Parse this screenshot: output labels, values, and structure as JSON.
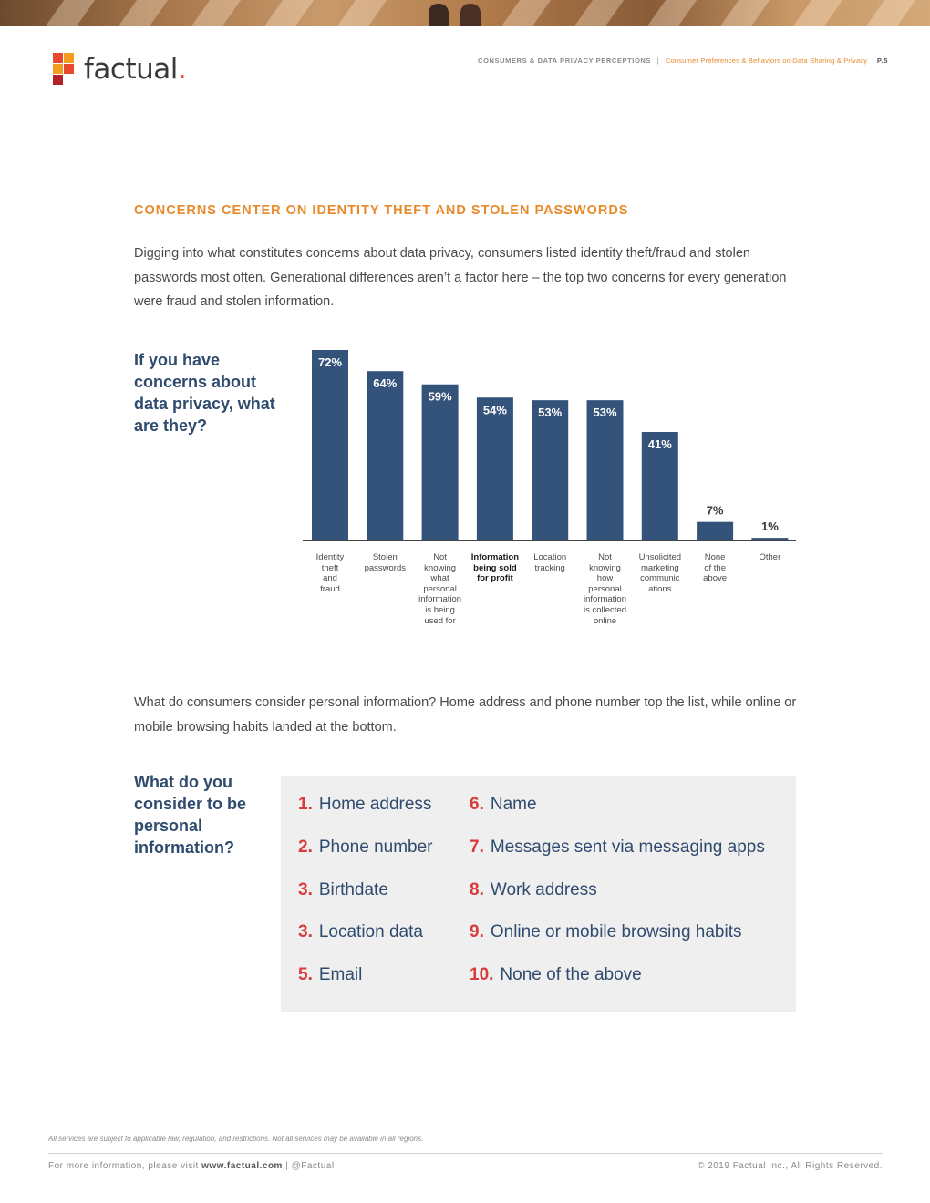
{
  "brand": {
    "name": "factual",
    "dot": ".",
    "colors": {
      "orange": "#f39c1f",
      "red": "#e8482e",
      "dark_red": "#b32026",
      "navy": "#2f4b6e",
      "bar": "#34537a",
      "accent_orange": "#e8892a"
    }
  },
  "header": {
    "doc_title": "CONSUMERS & DATA PRIVACY PERCEPTIONS",
    "separator": "|",
    "section": "Consumer Preferences & Behaviors on Data Sharing & Privacy",
    "page": "P.5"
  },
  "section_heading": "CONCERNS CENTER ON IDENTITY THEFT AND STOLEN PASSWORDS",
  "intro_text": "Digging into what constitutes concerns about data privacy, consumers listed identity theft/fraud and stolen passwords most often. Generational differences aren’t a factor here – the top two concerns for every generation were fraud and stolen information.",
  "chart_question": "If you have concerns about data privacy, what are they?",
  "chart_data": {
    "type": "bar",
    "categories": [
      "Identity theft and fraud",
      "Stolen passwords",
      "Not knowing what personal information is being used for",
      "Information being sold for profit",
      "Location tracking",
      "Not knowing how personal information is collected online",
      "Unsolicited marketing communications",
      "None of the above",
      "Other"
    ],
    "values": [
      72,
      64,
      59,
      54,
      53,
      53,
      41,
      7,
      1
    ],
    "value_labels": [
      "72%",
      "64%",
      "59%",
      "54%",
      "53%",
      "53%",
      "41%",
      "7%",
      "1%"
    ],
    "category_lines": [
      [
        "Identity",
        "theft",
        "and",
        "fraud"
      ],
      [
        "Stolen",
        "passwords"
      ],
      [
        "Not",
        "knowing",
        "what",
        "personal",
        "information",
        "is being",
        "used for"
      ],
      [
        "Information",
        "being sold",
        "for profit"
      ],
      [
        "Location",
        "tracking"
      ],
      [
        "Not",
        "knowing",
        "how",
        "personal",
        "information",
        "is collected",
        "online"
      ],
      [
        "Unsolicited",
        "marketing",
        "communic",
        "ations"
      ],
      [
        "None",
        "of the",
        "above"
      ],
      [
        "Other"
      ]
    ],
    "bold_category": 3,
    "ylim": [
      0,
      72
    ],
    "bar_color": "#34537a",
    "title": "",
    "xlabel": "",
    "ylabel": ""
  },
  "second_text": "What do consumers consider personal information? Home address and phone number top the list, while online or mobile browsing habits landed at the bottom.",
  "list_question": "What do you consider to be personal information?",
  "ranked_list": {
    "left": [
      {
        "num": "1.",
        "text": "Home address"
      },
      {
        "num": "2.",
        "text": "Phone number"
      },
      {
        "num": "3.",
        "text": "Birthdate"
      },
      {
        "num": "3.",
        "text": "Location data"
      },
      {
        "num": "5.",
        "text": "Email"
      }
    ],
    "right": [
      {
        "num": "6.",
        "text": "Name"
      },
      {
        "num": "7.",
        "text": "Messages sent via messaging apps"
      },
      {
        "num": "8.",
        "text": "Work address"
      },
      {
        "num": "9.",
        "text": "Online or mobile browsing habits"
      },
      {
        "num": "10.",
        "text": "None of the above"
      }
    ]
  },
  "footer": {
    "disclaimer": "All services are subject to applicable law, regulation, and restrictions. Not all services may be available in all regions.",
    "info_prefix": "For more information, please visit",
    "site": "www.factual.com",
    "handle": "| @Factual",
    "copyright": "© 2019 Factual Inc., All Rights Reserved."
  }
}
